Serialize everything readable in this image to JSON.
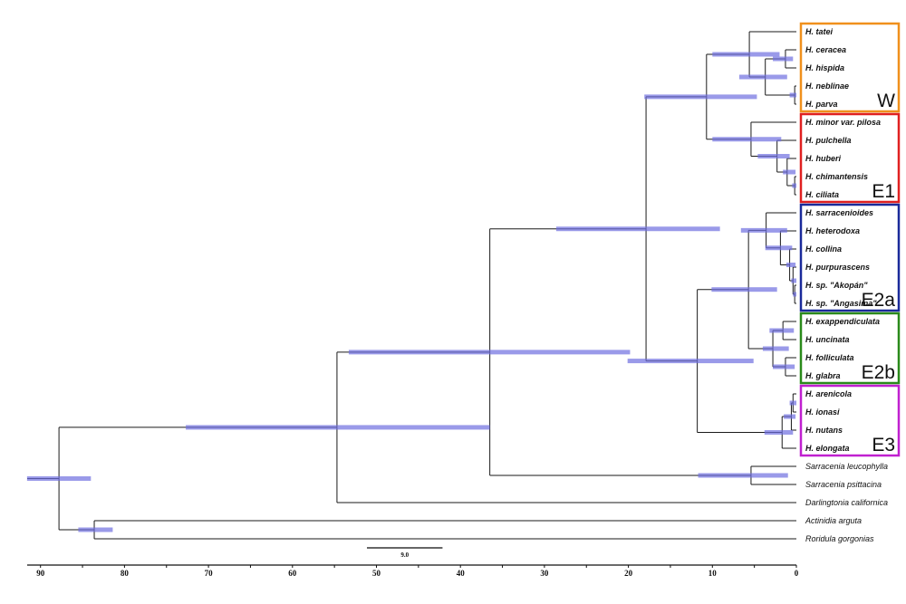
{
  "axis": {
    "ticks": [
      90,
      80,
      70,
      60,
      50,
      40,
      30,
      20,
      10,
      0
    ],
    "minor_step": 5,
    "range": [
      91.6,
      0
    ],
    "direction": "reversed"
  },
  "scale_bar": {
    "label": "9.0",
    "length": 9.0
  },
  "colors": {
    "branch": "#1a1a1a",
    "hpd_bar": "#6f6fe0",
    "axis": "#111111"
  },
  "tree": {
    "age": 87.8,
    "hpd": [
      91.6,
      84.0
    ],
    "children": [
      {
        "age": 54.7,
        "hpd": [
          72.7,
          36.5
        ],
        "children": [
          {
            "age": 36.5,
            "hpd": [
              53.3,
              19.8
            ],
            "children": [
              {
                "age": 17.9,
                "hpd": [
                  28.6,
                  9.1
                ],
                "children": [
                  {
                    "age": 10.7,
                    "hpd": [
                      18.1,
                      4.7
                    ],
                    "children": [
                      {
                        "age": 5.6,
                        "hpd": [
                          10.0,
                          2.0
                        ],
                        "children": [
                          {
                            "name": "H. tatei"
                          },
                          {
                            "age": 3.7,
                            "hpd": [
                              6.8,
                              1.1
                            ],
                            "children": [
                              {
                                "age": 1.3,
                                "hpd": [
                                  2.8,
                                  0.4
                                ],
                                "children": [
                                  {
                                    "name": "H. ceracea"
                                  },
                                  {
                                    "name": "H. hispida"
                                  }
                                ]
                              },
                              {
                                "age": 0.2,
                                "hpd": [
                                  0.8,
                                  0.0
                                ],
                                "children": [
                                  {
                                    "name": "H. neblinae"
                                  },
                                  {
                                    "name": "H. parva"
                                  }
                                ]
                              }
                            ]
                          }
                        ]
                      },
                      {
                        "age": 5.4,
                        "hpd": [
                          10.0,
                          1.8
                        ],
                        "children": [
                          {
                            "name": "H. minor var. pilosa"
                          },
                          {
                            "age": 2.3,
                            "hpd": [
                              4.6,
                              0.8
                            ],
                            "children": [
                              {
                                "name": "H. pulchella"
                              },
                              {
                                "age": 1.1,
                                "hpd": [
                                  1.6,
                                  0.1
                                ],
                                "children": [
                                  {
                                    "name": "H. huberi"
                                  },
                                  {
                                    "age": 0.2,
                                    "hpd": [
                                      0.5,
                                      0.0
                                    ],
                                    "children": [
                                      {
                                        "name": "H. chimantensis"
                                      },
                                      {
                                        "name": "H. ciliata"
                                      }
                                    ]
                                  }
                                ]
                              }
                            ]
                          }
                        ]
                      }
                    ]
                  },
                  {
                    "age": 11.8,
                    "hpd": [
                      20.1,
                      5.1
                    ],
                    "children": [
                      {
                        "age": 5.7,
                        "hpd": [
                          10.1,
                          2.3
                        ],
                        "children": [
                          {
                            "age": 3.6,
                            "hpd": [
                              6.6,
                              1.1
                            ],
                            "children": [
                              {
                                "name": "H. sarracenioides"
                              },
                              {
                                "age": 1.9,
                                "hpd": [
                                  3.7,
                                  0.5
                                ],
                                "children": [
                                  {
                                    "name": "H. heterodoxa"
                                  },
                                  {
                                    "age": 0.8,
                                    "hpd": [
                                      1.2,
                                      0.1
                                    ],
                                    "children": [
                                      {
                                        "name": "H. collina"
                                      },
                                      {
                                        "age": 0.4,
                                        "hpd": [
                                          0.6,
                                          0.0
                                        ],
                                        "children": [
                                          {
                                            "name": "H. purpurascens"
                                          },
                                          {
                                            "age": 0.2,
                                            "hpd": [
                                              0.4,
                                              0.0
                                            ],
                                            "children": [
                                              {
                                                "name": "H. sp. \"Akopán\""
                                              },
                                              {
                                                "name": "H. sp. \"Angasima\""
                                              }
                                            ]
                                          }
                                        ]
                                      }
                                    ]
                                  }
                                ]
                              }
                            ]
                          },
                          {
                            "age": 2.8,
                            "hpd": [
                              4.0,
                              0.9
                            ],
                            "children": [
                              {
                                "age": 1.6,
                                "hpd": [
                                  3.2,
                                  0.3
                                ],
                                "children": [
                                  {
                                    "name": "H. exappendiculata"
                                  },
                                  {
                                    "name": "H. uncinata"
                                  }
                                ]
                              },
                              {
                                "age": 1.3,
                                "hpd": [
                                  2.8,
                                  0.2
                                ],
                                "children": [
                                  {
                                    "name": "H. folliculata"
                                  },
                                  {
                                    "name": "H. glabra"
                                  }
                                ]
                              }
                            ]
                          }
                        ]
                      },
                      {
                        "age": 1.7,
                        "hpd": [
                          3.8,
                          0.4
                        ],
                        "children": [
                          {
                            "age": 0.6,
                            "hpd": [
                              1.5,
                              0.1
                            ],
                            "children": [
                              {
                                "age": 0.4,
                                "hpd": [
                                  0.8,
                                  0.0
                                ],
                                "children": [
                                  {
                                    "name": "H. arenicola"
                                  },
                                  {
                                    "name": "H. ionasi"
                                  }
                                ]
                              },
                              {
                                "name": "H. nutans"
                              }
                            ]
                          },
                          {
                            "name": "H. elongata"
                          }
                        ]
                      }
                    ]
                  }
                ]
              },
              {
                "age": 5.4,
                "hpd": [
                  11.7,
                  1.0
                ],
                "children": [
                  {
                    "name": "Sarracenia leucophylla"
                  },
                  {
                    "name": "Sarracenia psittacina"
                  }
                ]
              }
            ]
          },
          {
            "name": "Darlingtonia californica"
          }
        ]
      },
      {
        "age": 83.6,
        "hpd": [
          85.5,
          81.4
        ],
        "children": [
          {
            "name": "Actinidia arguta"
          },
          {
            "name": "Roridula gorgonias"
          }
        ]
      }
    ]
  },
  "clades": [
    {
      "label": "W",
      "first": "H. tatei",
      "last": "H. parva",
      "color": "#f0901c"
    },
    {
      "label": "E1",
      "first": "H. minor var. pilosa",
      "last": "H. ciliata",
      "color": "#e02020"
    },
    {
      "label": "E2a",
      "first": "H. sarracenioides",
      "last": "H. sp. \"Angasima\"",
      "color": "#1a2a9a"
    },
    {
      "label": "E2b",
      "first": "H. exappendiculata",
      "last": "H. glabra",
      "color": "#2a8a1a"
    },
    {
      "label": "E3",
      "first": "H. arenicola",
      "last": "H. elongata",
      "color": "#c020d0"
    }
  ]
}
